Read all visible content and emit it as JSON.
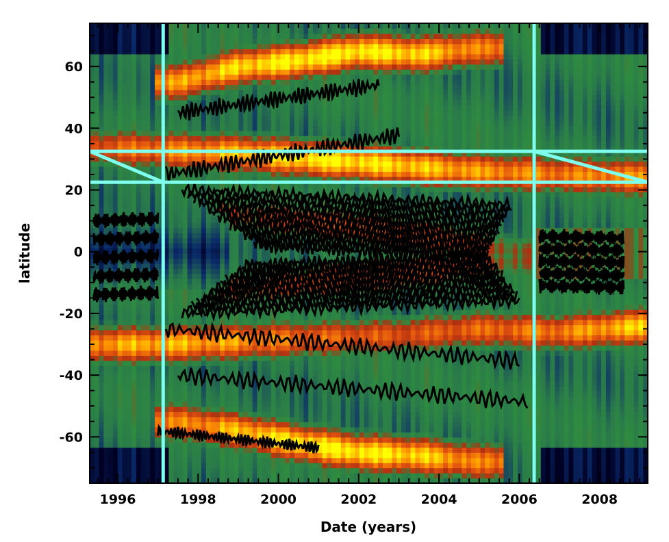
{
  "chart_data": {
    "type": "heatmap",
    "title": "",
    "xlabel": "Date (years)",
    "ylabel": "latitude",
    "xlim": [
      1995.3,
      2009.2
    ],
    "ylim": [
      -75,
      74
    ],
    "x_ticks": [
      1996,
      1998,
      2000,
      2002,
      2004,
      2006,
      2008
    ],
    "y_ticks": [
      -60,
      -40,
      -20,
      0,
      20,
      40,
      60
    ],
    "grid": false,
    "legend": "none",
    "colormap": [
      "#000022",
      "#0a2a6a",
      "#2a7a4a",
      "#2e8b40",
      "#b03010",
      "#e05010",
      "#ff9a00",
      "#ffff00"
    ],
    "overlays": {
      "contours": "black",
      "reference_lines": {
        "color": "#7fffee",
        "vertical_x": [
          1997.13,
          2006.37
        ],
        "horizontal_y": [
          32.5,
          22.5
        ],
        "diagonals": [
          {
            "from": [
              1995.3,
              32.5
            ],
            "to": [
              1997.13,
              22.5
            ]
          },
          {
            "from": [
              2006.37,
              32.5
            ],
            "to": [
              2009.2,
              22.5
            ]
          }
        ]
      }
    },
    "bands": [
      {
        "name": "",
        "x": [
          1995.3,
          1997,
          1999,
          2001,
          2003,
          2005,
          2007,
          2009.2
        ],
        "y": [
          34,
          33,
          32,
          30,
          28,
          26,
          25,
          24
        ],
        "intensity": [
          0.7,
          0.8,
          0.9,
          1.0,
          0.95,
          0.85,
          0.8,
          0.85
        ]
      },
      {
        "name": "",
        "x": [
          1995.3,
          1997,
          1999,
          2001,
          2003,
          2005,
          2007,
          2009.2
        ],
        "y": [
          -30,
          -30,
          -29,
          -28,
          -27,
          -25,
          -26,
          -24
        ],
        "intensity": [
          0.85,
          0.9,
          0.85,
          0.75,
          0.7,
          0.75,
          0.8,
          0.95
        ]
      },
      {
        "name": "",
        "x": [
          1997.5,
          1999,
          2000.5,
          2002,
          2003.5,
          2005
        ],
        "y": [
          55,
          60,
          62,
          65,
          64,
          66
        ],
        "intensity": [
          0.85,
          0.95,
          1.0,
          1.0,
          0.95,
          0.8
        ]
      },
      {
        "name": "",
        "x": [
          1997.5,
          1999,
          2000.5,
          2002,
          2003.5,
          2005
        ],
        "y": [
          -55,
          -58,
          -62,
          -65,
          -66,
          -68
        ],
        "intensity": [
          0.8,
          0.9,
          1.0,
          1.0,
          0.95,
          0.8
        ]
      },
      {
        "name": "",
        "x": [
          1999,
          2000.5,
          2002,
          2003.5,
          2005,
          2006
        ],
        "y": [
          12,
          10,
          8,
          5,
          2,
          0
        ],
        "intensity": [
          0.55,
          0.65,
          0.7,
          0.7,
          0.6,
          0.5
        ]
      },
      {
        "name": "",
        "x": [
          1999,
          2000.5,
          2002,
          2003.5,
          2005,
          2006
        ],
        "y": [
          -12,
          -10,
          -8,
          -6,
          -4,
          -3
        ],
        "intensity": [
          0.55,
          0.65,
          0.7,
          0.7,
          0.6,
          0.5
        ]
      }
    ]
  }
}
